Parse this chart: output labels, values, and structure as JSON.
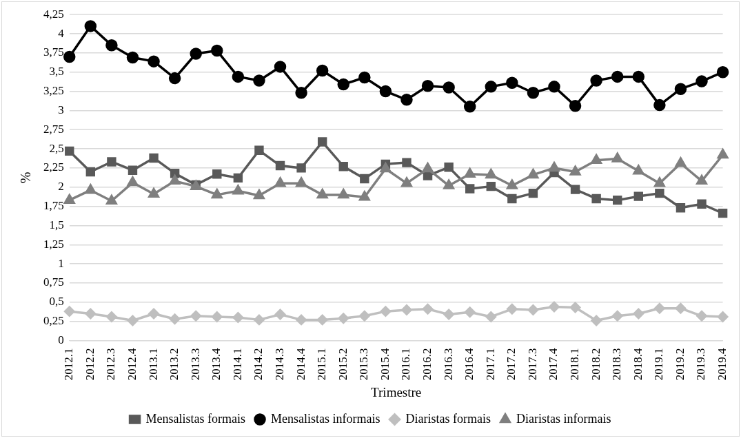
{
  "chart_data": {
    "type": "line",
    "xlabel": "Trimestre",
    "ylabel": "%",
    "categories": [
      "2012.1",
      "2012.2",
      "2012.3",
      "2012.4",
      "2013.1",
      "2013.2",
      "2013.3",
      "2013.4",
      "2014.1",
      "2014.2",
      "2014.3",
      "2014.4",
      "2015.1",
      "2015.2",
      "2015.3",
      "2015.4",
      "2016.1",
      "2016.2",
      "2016.3",
      "2016.4",
      "2017.1",
      "2017.2",
      "2017.3",
      "2017.4",
      "2018.1",
      "2018.2",
      "2018.3",
      "2018.4",
      "2019.1",
      "2019.2",
      "2019.3",
      "2019.4"
    ],
    "series": [
      {
        "name": "Mensalistas formais",
        "color": "#595959",
        "marker": "square",
        "values": [
          2.47,
          2.2,
          2.33,
          2.22,
          2.38,
          2.18,
          2.03,
          2.17,
          2.12,
          2.48,
          2.28,
          2.25,
          2.59,
          2.27,
          2.11,
          2.3,
          2.32,
          2.15,
          2.26,
          1.98,
          2.01,
          1.85,
          1.92,
          2.19,
          1.97,
          1.85,
          1.83,
          1.88,
          1.92,
          1.73,
          1.78,
          1.66
        ]
      },
      {
        "name": "Mensalistas informais",
        "color": "#000000",
        "marker": "circle",
        "values": [
          3.7,
          4.1,
          3.85,
          3.69,
          3.64,
          3.42,
          3.74,
          3.78,
          3.44,
          3.39,
          3.57,
          3.23,
          3.52,
          3.34,
          3.43,
          3.25,
          3.14,
          3.32,
          3.3,
          3.05,
          3.31,
          3.36,
          3.23,
          3.31,
          3.06,
          3.39,
          3.44,
          3.44,
          3.07,
          3.28,
          3.38,
          3.5
        ]
      },
      {
        "name": "Diaristas formais",
        "color": "#bfbfbf",
        "marker": "diamond",
        "values": [
          0.38,
          0.35,
          0.31,
          0.26,
          0.35,
          0.28,
          0.32,
          0.31,
          0.3,
          0.27,
          0.34,
          0.27,
          0.27,
          0.29,
          0.32,
          0.38,
          0.4,
          0.41,
          0.34,
          0.37,
          0.31,
          0.41,
          0.4,
          0.44,
          0.43,
          0.26,
          0.32,
          0.35,
          0.42,
          0.42,
          0.32,
          0.31
        ]
      },
      {
        "name": "Diaristas informais",
        "color": "#7f7f7f",
        "marker": "triangle",
        "values": [
          1.83,
          1.96,
          1.82,
          2.06,
          1.91,
          2.08,
          2.01,
          1.9,
          1.95,
          1.89,
          2.05,
          2.05,
          1.9,
          1.9,
          1.87,
          2.24,
          2.05,
          2.24,
          2.02,
          2.17,
          2.16,
          2.02,
          2.16,
          2.25,
          2.2,
          2.35,
          2.37,
          2.21,
          2.05,
          2.31,
          2.08,
          2.42
        ]
      }
    ],
    "ylim": [
      0,
      4.25
    ],
    "yticks": [
      0,
      {
        "value": 0.25,
        "label": "0,25"
      },
      {
        "value": 0.5,
        "label": "0,5"
      },
      {
        "value": 0.75,
        "label": "0,75"
      },
      1,
      {
        "value": 1.25,
        "label": "1,25"
      },
      {
        "value": 1.5,
        "label": "1,5"
      },
      {
        "value": 1.75,
        "label": "1,75"
      },
      2,
      {
        "value": 2.25,
        "label": "2,25"
      },
      {
        "value": 2.5,
        "label": "2,5"
      },
      {
        "value": 2.75,
        "label": "2,75"
      },
      3,
      {
        "value": 3.25,
        "label": "3,25"
      },
      {
        "value": 3.5,
        "label": "3,5"
      },
      {
        "value": 3.75,
        "label": "3,75"
      },
      4,
      {
        "value": 4.25,
        "label": "4,25"
      }
    ],
    "grid": "y",
    "legend": "bottom",
    "line_style": "solid"
  }
}
